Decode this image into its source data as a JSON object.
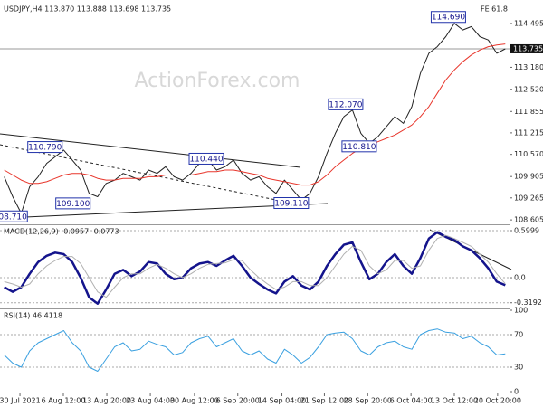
{
  "chart_data": [
    {
      "type": "line",
      "title": "USDJPY,H4  113.870 113.888 113.698 113.735",
      "fe_label": "FE 61.8",
      "watermark": "ActionForex.com",
      "xlim": [
        0,
        60
      ],
      "ylim": [
        108.5,
        115.09
      ],
      "yticks": [
        114.495,
        {
          "value": 113.18,
          "label": "113.180"
        },
        {
          "value": 112.52,
          "label": "112.520"
        },
        111.855,
        111.215,
        {
          "value": 110.57,
          "label": "110.570"
        },
        109.905,
        109.265,
        108.605
      ],
      "current_price": 113.735,
      "series": [
        {
          "color": "#222222",
          "values": [
            109.9,
            109.3,
            108.8,
            109.6,
            109.9,
            110.3,
            110.5,
            110.7,
            110.4,
            110.1,
            109.4,
            109.3,
            109.7,
            109.8,
            110.0,
            109.9,
            109.8,
            110.1,
            110.0,
            110.2,
            109.9,
            109.8,
            110.0,
            110.3,
            110.4,
            110.1,
            110.2,
            110.4,
            110.0,
            109.8,
            109.9,
            109.6,
            109.4,
            109.8,
            109.5,
            109.2,
            109.4,
            109.9,
            110.6,
            111.2,
            111.7,
            111.9,
            111.2,
            110.9,
            111.1,
            111.4,
            111.7,
            111.5,
            112.0,
            113.0,
            113.6,
            113.8,
            114.1,
            114.5,
            114.3,
            114.4,
            114.1,
            114.0,
            113.6,
            113.735
          ]
        },
        {
          "color": "#e8362c",
          "values": [
            110.1,
            109.95,
            109.8,
            109.7,
            109.7,
            109.75,
            109.85,
            109.95,
            110.0,
            110.0,
            109.95,
            109.85,
            109.8,
            109.8,
            109.85,
            109.85,
            109.85,
            109.9,
            109.9,
            109.95,
            109.95,
            109.95,
            109.95,
            110.0,
            110.05,
            110.05,
            110.1,
            110.1,
            110.05,
            110.0,
            109.95,
            109.85,
            109.8,
            109.75,
            109.7,
            109.65,
            109.65,
            109.75,
            109.95,
            110.2,
            110.4,
            110.6,
            110.75,
            110.85,
            110.95,
            111.05,
            111.15,
            111.3,
            111.45,
            111.7,
            112.0,
            112.4,
            112.8,
            113.1,
            113.35,
            113.55,
            113.7,
            113.8,
            113.85,
            113.88
          ]
        }
      ],
      "annotations": [
        {
          "value": 110.79,
          "label": "110.790",
          "x": 5.3
        },
        {
          "value": 109.1,
          "label": "109.100",
          "x": 8.6
        },
        {
          "value": 110.44,
          "label": "110.440",
          "x": 24.3
        },
        {
          "value": 108.71,
          "label": "108.710",
          "x": 1.2
        },
        {
          "value": 112.07,
          "label": "112.070",
          "x": 40.7
        },
        {
          "value": 110.81,
          "label": "110.810",
          "x": 42.3
        },
        {
          "value": 114.69,
          "label": "114.690",
          "x": 52.8
        },
        {
          "value": 109.11,
          "label": "109.110",
          "x": 34.3
        }
      ]
    },
    {
      "type": "line",
      "title": "MACD(12,26,9) -0.0957 -0.0773",
      "xlim": [
        0,
        60
      ],
      "ylim": [
        -0.38,
        0.6577
      ],
      "yticks": [
        0.5999,
        {
          "value": 0,
          "label": "0.0"
        },
        -0.3192
      ],
      "series": [
        {
          "color": "#14148c",
          "values": [
            -0.12,
            -0.18,
            -0.12,
            0.05,
            0.2,
            0.28,
            0.32,
            0.3,
            0.2,
            0.0,
            -0.25,
            -0.33,
            -0.15,
            0.05,
            0.1,
            0.02,
            0.08,
            0.2,
            0.18,
            0.05,
            -0.02,
            0.0,
            0.12,
            0.18,
            0.2,
            0.15,
            0.22,
            0.28,
            0.15,
            0.0,
            -0.08,
            -0.15,
            -0.2,
            -0.05,
            0.02,
            -0.1,
            -0.15,
            -0.05,
            0.15,
            0.3,
            0.42,
            0.45,
            0.2,
            -0.02,
            0.05,
            0.2,
            0.3,
            0.15,
            0.05,
            0.25,
            0.5,
            0.58,
            0.52,
            0.48,
            0.4,
            0.35,
            0.25,
            0.12,
            -0.05,
            -0.0957
          ]
        },
        {
          "color": "#b0b0b0",
          "values": [
            -0.05,
            -0.08,
            -0.12,
            -0.08,
            0.05,
            0.15,
            0.22,
            0.27,
            0.27,
            0.18,
            0.0,
            -0.18,
            -0.25,
            -0.12,
            0.0,
            0.05,
            0.05,
            0.12,
            0.17,
            0.12,
            0.05,
            0.0,
            0.05,
            0.12,
            0.17,
            0.18,
            0.19,
            0.23,
            0.22,
            0.1,
            0.0,
            -0.08,
            -0.15,
            -0.12,
            -0.05,
            -0.05,
            -0.1,
            -0.1,
            0.0,
            0.15,
            0.3,
            0.4,
            0.35,
            0.15,
            0.05,
            0.1,
            0.22,
            0.22,
            0.12,
            0.15,
            0.35,
            0.5,
            0.54,
            0.5,
            0.45,
            0.4,
            0.3,
            0.2,
            0.05,
            -0.0773
          ]
        }
      ]
    },
    {
      "type": "line",
      "title": "RSI(14) 46.4118",
      "xlim": [
        0,
        60
      ],
      "ylim": [
        0,
        100
      ],
      "yticks": [
        100,
        70,
        30,
        0
      ],
      "series": [
        {
          "color": "#3aa0e0",
          "values": [
            45,
            35,
            30,
            50,
            60,
            65,
            70,
            75,
            60,
            50,
            30,
            25,
            40,
            55,
            60,
            50,
            52,
            62,
            58,
            55,
            45,
            48,
            60,
            65,
            68,
            55,
            60,
            65,
            50,
            45,
            50,
            40,
            35,
            52,
            45,
            35,
            42,
            55,
            70,
            72,
            73,
            65,
            50,
            45,
            55,
            60,
            62,
            55,
            52,
            70,
            75,
            77,
            73,
            72,
            65,
            68,
            60,
            55,
            45,
            46.4118
          ]
        }
      ],
      "xticks": [
        {
          "value": 2.35,
          "label": "30 Jul 2021"
        },
        {
          "value": 7.46,
          "label": "6 Aug 12:00"
        },
        {
          "value": 12.58,
          "label": "13 Aug 20:00"
        },
        {
          "value": 17.7,
          "label": "23 Aug 04:00"
        },
        {
          "value": 22.9,
          "label": "30 Aug 12:00"
        },
        {
          "value": 28.0,
          "label": "6 Sep 20:00"
        },
        {
          "value": 33.2,
          "label": "14 Sep 04:00"
        },
        {
          "value": 38.2,
          "label": "21 Sep 12:00"
        },
        {
          "value": 43.3,
          "label": "28 Sep 20:00"
        },
        {
          "value": 48.4,
          "label": "6 Oct 04:00"
        },
        {
          "value": 53.5,
          "label": "13 Oct 12:00"
        },
        {
          "value": 58.6,
          "label": "20 Oct 20:00"
        }
      ]
    }
  ]
}
